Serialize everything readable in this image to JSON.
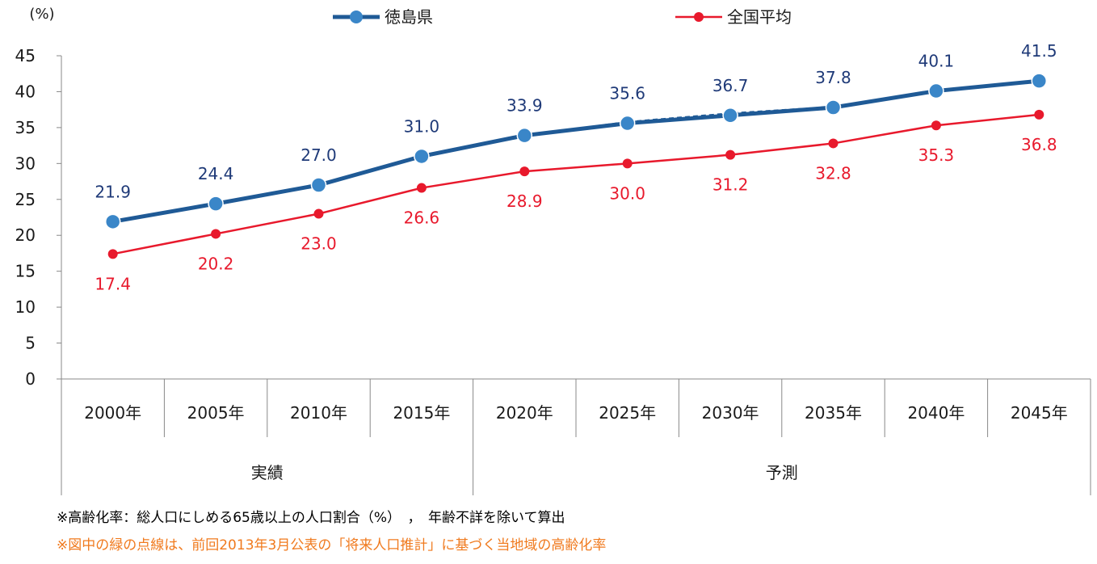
{
  "chart_data": {
    "type": "line",
    "unit_label": "(%)",
    "ylim": [
      0,
      45
    ],
    "yticks": [
      "0",
      "5",
      "10",
      "15",
      "20",
      "25",
      "30",
      "35",
      "40",
      "45"
    ],
    "categories": [
      "2000年",
      "2005年",
      "2010年",
      "2015年",
      "2020年",
      "2025年",
      "2030年",
      "2035年",
      "2040年",
      "2045年"
    ],
    "groups": [
      {
        "label": "実績",
        "from": 0,
        "to": 3
      },
      {
        "label": "予測",
        "from": 4,
        "to": 9
      }
    ],
    "legend_position": "top",
    "grid": false,
    "series": [
      {
        "name": "徳島県",
        "color": "#1f5a96",
        "marker_color": "#3a86c8",
        "values": [
          21.9,
          24.4,
          27.0,
          31.0,
          33.9,
          35.6,
          36.7,
          37.8,
          40.1,
          41.5
        ],
        "labels": [
          "21.9",
          "24.4",
          "27.0",
          "31.0",
          "33.9",
          "35.6",
          "36.7",
          "37.8",
          "40.1",
          "41.5"
        ]
      },
      {
        "name": "全国平均",
        "color": "#e8192c",
        "marker_color": "#e8192c",
        "values": [
          17.4,
          20.2,
          23.0,
          26.6,
          28.9,
          30.0,
          31.2,
          32.8,
          35.3,
          36.8
        ],
        "labels": [
          "17.4",
          "20.2",
          "23.0",
          "26.6",
          "28.9",
          "30.0",
          "31.2",
          "32.8",
          "35.3",
          "36.8"
        ]
      }
    ],
    "previous_projection": {
      "style": "dashed",
      "x_from": "2020年",
      "values": [
        33.9,
        35.8,
        37.0,
        37.9,
        40.2,
        41.5
      ]
    }
  },
  "notes": {
    "note1": "※高齢化率：総人口にしめる65歳以上の人口割合（%）　，　年齢不詳を除いて算出",
    "note2": "※図中の緑の点線は、前回2013年3月公表の「将来人口推計」に基づく当地域の高齢化率",
    "note2_color": "#f07a1e"
  }
}
